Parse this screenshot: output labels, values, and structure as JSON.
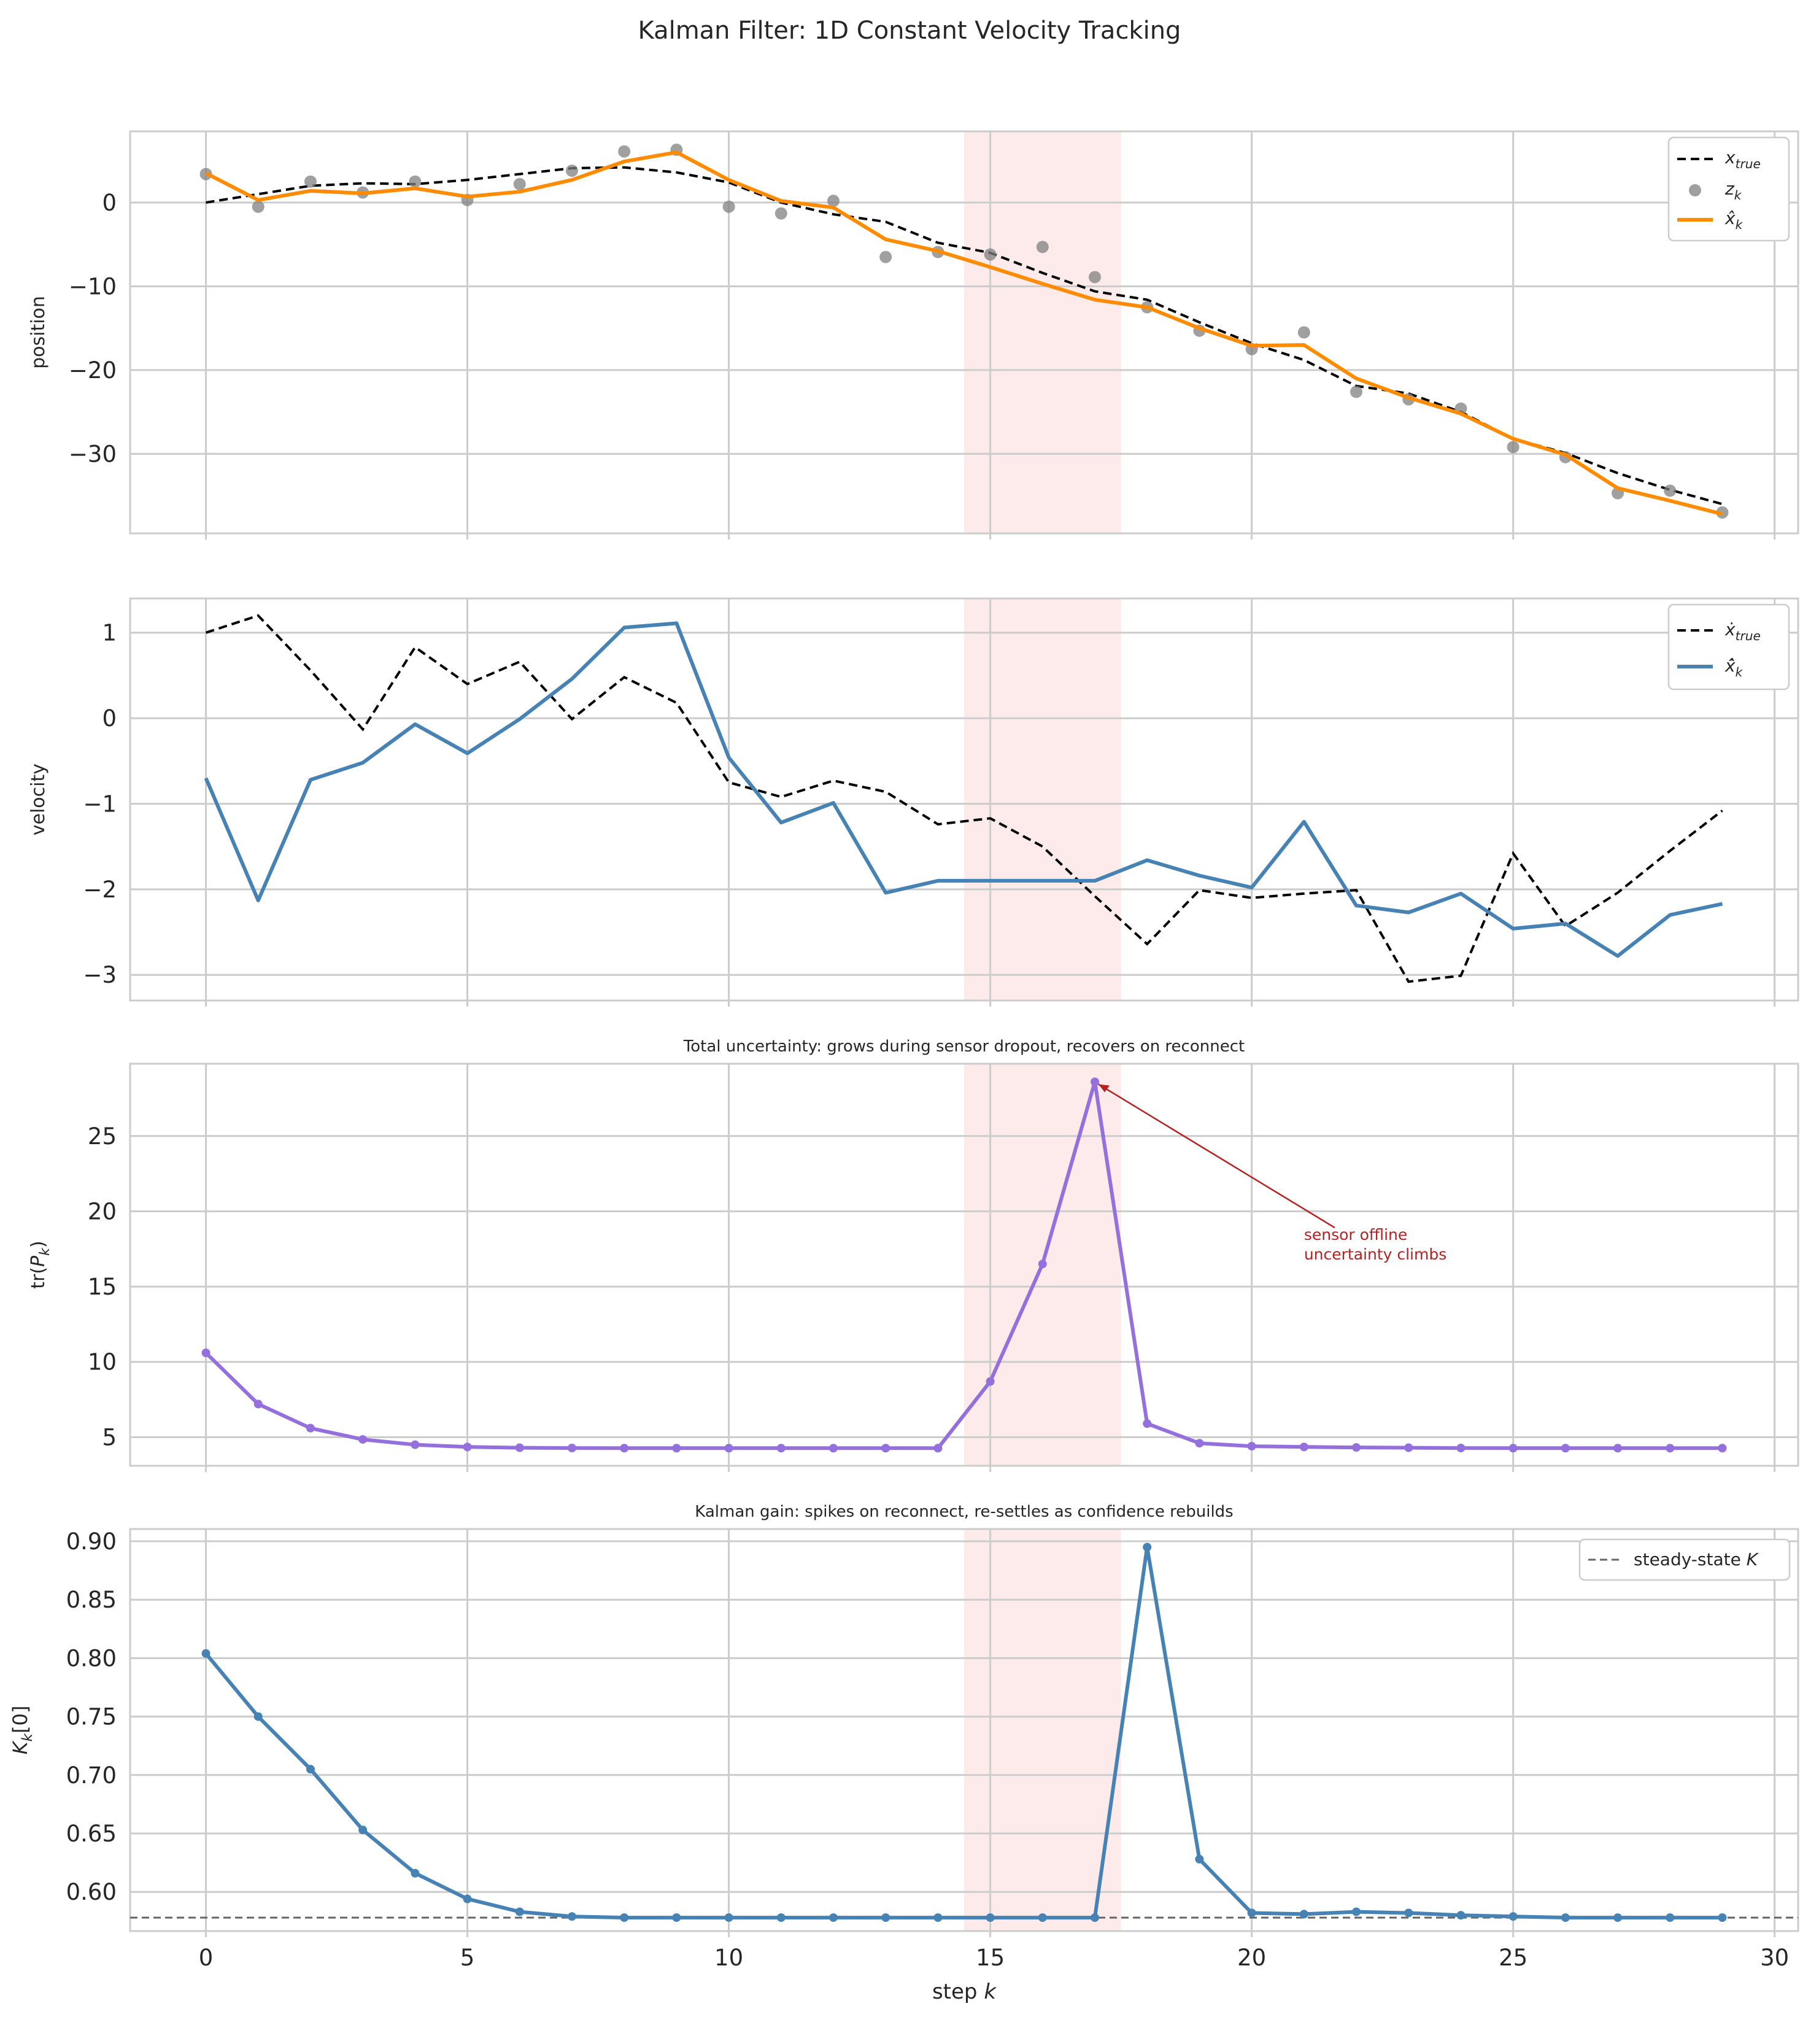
{
  "figure": {
    "title": "Kalman Filter: 1D Constant Velocity Tracking",
    "xlabel": "step",
    "xlabel_var": "k",
    "xticks": [
      "0",
      "5",
      "10",
      "15",
      "20",
      "25",
      "30"
    ]
  },
  "colors": {
    "true": "#000000",
    "measurement": "#808080",
    "estimate_position": "#ff8c00",
    "estimate_velocity": "#4682b4",
    "uncertainty": "#9370db",
    "gain": "#4682b4",
    "dropout_band": "#fde8e8",
    "steady_state": "#666666",
    "annotation": "#b22222",
    "grid": "#cccccc",
    "axes_edge": "#cccccc"
  },
  "dropout_window": [
    14.5,
    17.5
  ],
  "chart_data": [
    {
      "type": "line",
      "ylabel": "position",
      "yticks": [
        "0",
        "−10",
        "−20",
        "−30"
      ],
      "ylim": [
        -39.5,
        8.5
      ],
      "x": [
        0,
        1,
        2,
        3,
        4,
        5,
        6,
        7,
        8,
        9,
        10,
        11,
        12,
        13,
        14,
        15,
        16,
        17,
        18,
        19,
        20,
        21,
        22,
        23,
        24,
        25,
        26,
        27,
        28,
        29
      ],
      "series": [
        {
          "name": "x",
          "name_sub": "true",
          "kind": "dashed",
          "values": [
            0.0,
            1.0,
            2.0,
            2.3,
            2.2,
            2.7,
            3.4,
            4.1,
            4.2,
            3.6,
            2.4,
            0.0,
            -1.4,
            -2.3,
            -4.8,
            -6.0,
            -8.4,
            -10.6,
            -11.6,
            -14.3,
            -16.8,
            -18.8,
            -21.9,
            -22.8,
            -25.0,
            -28.2,
            -29.9,
            -32.3,
            -34.3,
            -36.0
          ]
        },
        {
          "name": "z",
          "name_sub": "k",
          "kind": "scatter",
          "values": [
            3.4,
            -0.5,
            2.5,
            1.2,
            2.5,
            0.3,
            2.2,
            3.8,
            6.1,
            6.3,
            -0.5,
            -1.3,
            0.2,
            -6.5,
            -5.9,
            -6.2,
            -5.3,
            -8.9,
            -12.5,
            -15.3,
            -17.5,
            -15.5,
            -22.6,
            -23.5,
            -24.6,
            -29.2,
            -30.4,
            -34.7,
            -34.4,
            -37.0
          ]
        },
        {
          "name": "x̂",
          "name_sub": "k",
          "kind": "solid",
          "values": [
            3.5,
            0.3,
            1.4,
            1.1,
            1.7,
            0.7,
            1.3,
            2.7,
            4.9,
            6.0,
            2.7,
            0.2,
            -0.6,
            -4.4,
            -5.8,
            -7.7,
            -9.7,
            -11.6,
            -12.5,
            -15.0,
            -17.1,
            -17.0,
            -21.0,
            -23.3,
            -25.2,
            -28.2,
            -30.1,
            -34.1,
            -35.6,
            -37.2
          ]
        }
      ],
      "legend": "top-right"
    },
    {
      "type": "line",
      "ylabel": "velocity",
      "yticks": [
        "1",
        "0",
        "−1",
        "−2",
        "−3"
      ],
      "ylim": [
        -3.3,
        1.4
      ],
      "x": [
        0,
        1,
        2,
        3,
        4,
        5,
        6,
        7,
        8,
        9,
        10,
        11,
        12,
        13,
        14,
        15,
        16,
        17,
        18,
        19,
        20,
        21,
        22,
        23,
        24,
        25,
        26,
        27,
        28,
        29
      ],
      "series": [
        {
          "name": "ẋ",
          "name_sub": "true",
          "kind": "dashed",
          "values": [
            1.0,
            1.2,
            0.56,
            -0.13,
            0.83,
            0.4,
            0.66,
            -0.01,
            0.48,
            0.18,
            -0.75,
            -0.92,
            -0.73,
            -0.86,
            -1.24,
            -1.17,
            -1.5,
            -2.08,
            -2.64,
            -2.01,
            -2.1,
            -2.05,
            -2.01,
            -3.08,
            -3.01,
            -1.58,
            -2.43,
            -2.04,
            -1.55,
            -1.08
          ]
        },
        {
          "name": "x̂̇",
          "name_sub": "k",
          "kind": "solid",
          "values": [
            -0.7,
            -2.13,
            -0.72,
            -0.52,
            -0.07,
            -0.41,
            -0.01,
            0.46,
            1.06,
            1.11,
            -0.46,
            -1.22,
            -0.99,
            -2.04,
            -1.9,
            -1.9,
            -1.9,
            -1.9,
            -1.66,
            -1.84,
            -1.98,
            -1.21,
            -2.19,
            -2.27,
            -2.05,
            -2.46,
            -2.4,
            -2.78,
            -2.3,
            -2.17
          ]
        }
      ],
      "legend": "top-right"
    },
    {
      "type": "line",
      "title": "Total uncertainty: grows during sensor dropout, recovers on reconnect",
      "ylabel": "tr(P_k)",
      "yticks": [
        "5",
        "10",
        "15",
        "20",
        "25"
      ],
      "ylim": [
        3.1,
        29.8
      ],
      "x": [
        0,
        1,
        2,
        3,
        4,
        5,
        6,
        7,
        8,
        9,
        10,
        11,
        12,
        13,
        14,
        15,
        16,
        17,
        18,
        19,
        20,
        21,
        22,
        23,
        24,
        25,
        26,
        27,
        28,
        29
      ],
      "series": [
        {
          "kind": "solid_markers",
          "values": [
            10.6,
            7.2,
            5.6,
            4.85,
            4.5,
            4.35,
            4.3,
            4.28,
            4.27,
            4.27,
            4.27,
            4.27,
            4.27,
            4.27,
            4.27,
            8.7,
            16.5,
            28.6,
            5.9,
            4.6,
            4.4,
            4.35,
            4.32,
            4.3,
            4.28,
            4.27,
            4.27,
            4.27,
            4.27,
            4.27
          ]
        }
      ],
      "annotation": {
        "text_line1": "sensor offline",
        "text_line2": "uncertainty climbs",
        "point": [
          17,
          28.6
        ],
        "text_at": [
          21,
          18.1
        ]
      }
    },
    {
      "type": "line",
      "title": "Kalman gain: spikes on reconnect, re-settles as confidence rebuilds",
      "ylabel": "K_k[0]",
      "yticks": [
        "0.90",
        "0.85",
        "0.80",
        "0.75",
        "0.70",
        "0.65",
        "0.60"
      ],
      "ylim": [
        0.5665,
        0.9105
      ],
      "x": [
        0,
        1,
        2,
        3,
        4,
        5,
        6,
        7,
        8,
        9,
        10,
        11,
        12,
        13,
        14,
        15,
        16,
        17,
        18,
        19,
        20,
        21,
        22,
        23,
        24,
        25,
        26,
        27,
        28,
        29
      ],
      "series": [
        {
          "kind": "solid_markers",
          "values": [
            0.804,
            0.75,
            0.705,
            0.653,
            0.616,
            0.594,
            0.583,
            0.579,
            0.578,
            0.578,
            0.578,
            0.578,
            0.578,
            0.578,
            0.578,
            0.578,
            0.578,
            0.578,
            0.895,
            0.628,
            0.582,
            0.581,
            0.583,
            0.582,
            0.58,
            0.579,
            0.578,
            0.578,
            0.578,
            0.578
          ]
        }
      ],
      "reference": {
        "name": "steady-state",
        "name_var": "K",
        "value": 0.578
      },
      "legend": "top-right"
    }
  ]
}
